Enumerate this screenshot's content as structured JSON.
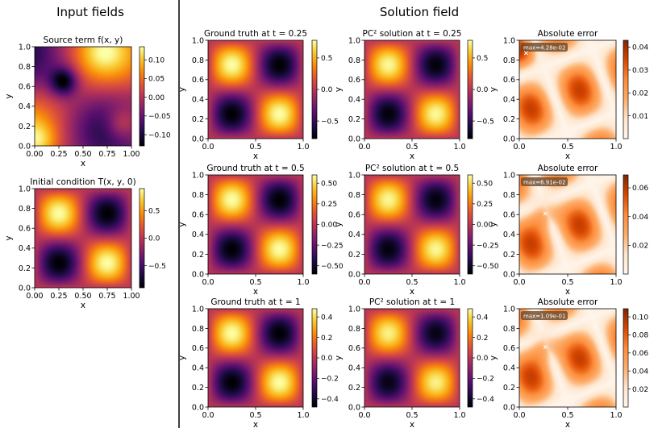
{
  "figure": {
    "left_title": "Input fields",
    "right_title": "Solution field"
  },
  "chart_data": [
    {
      "type": "heatmap",
      "id": "source",
      "title": "Source term f(x, y)",
      "xlabel": "x",
      "ylabel": "y",
      "xlim": [
        0,
        1
      ],
      "ylim": [
        0,
        1
      ],
      "xticks": [
        "0.00",
        "0.25",
        "0.50",
        "0.75",
        "1.00"
      ],
      "yticks": [
        "0.0",
        "0.2",
        "0.4",
        "0.6",
        "0.8",
        "1.0"
      ],
      "colormap": "inferno",
      "vmin": -0.13,
      "vmax": 0.135,
      "colorbar_ticks": [
        0.1,
        0.05,
        0.0,
        -0.05,
        -0.1
      ],
      "colorbar_labels": [
        "0.10",
        "0.05",
        "0.00",
        "−0.05",
        "−0.10"
      ],
      "field": "source"
    },
    {
      "type": "heatmap",
      "id": "initial",
      "title": "Initial condition T(x, y, 0)",
      "xlabel": "x",
      "ylabel": "y",
      "xlim": [
        0,
        1
      ],
      "ylim": [
        0,
        1
      ],
      "xticks": [
        "0.00",
        "0.25",
        "0.50",
        "0.75",
        "1.00"
      ],
      "yticks": [
        "0.0",
        "0.2",
        "0.4",
        "0.6",
        "0.8",
        "1.0"
      ],
      "colormap": "inferno",
      "vmin": -0.9,
      "vmax": 0.9,
      "colorbar_ticks": [
        0.5,
        0.0,
        -0.5
      ],
      "colorbar_labels": [
        "0.5",
        "0.0",
        "−0.5"
      ],
      "field": "wave",
      "amplitude": 0.9
    },
    {
      "type": "heatmap",
      "id": "gt1",
      "title": "Ground truth at t = 0.25",
      "xlabel": "x",
      "ylabel": "y",
      "xticks": [
        "0.0",
        "0.5",
        "1.0"
      ],
      "yticks": [
        "0.0",
        "0.2",
        "0.4",
        "0.6",
        "0.8",
        "1.0"
      ],
      "colormap": "inferno",
      "vmin": -0.78,
      "vmax": 0.78,
      "colorbar_ticks": [
        0.5,
        0.0,
        -0.5
      ],
      "colorbar_labels": [
        "0.5",
        "0.0",
        "−0.5"
      ],
      "field": "wave",
      "amplitude": 0.78
    },
    {
      "type": "heatmap",
      "id": "pc1",
      "title": "PC² solution at t = 0.25",
      "xlabel": "x",
      "ylabel": "y",
      "xticks": [
        "0.0",
        "0.5",
        "1.0"
      ],
      "yticks": [
        "0.0",
        "0.2",
        "0.4",
        "0.6",
        "0.8",
        "1.0"
      ],
      "colormap": "inferno",
      "vmin": -0.78,
      "vmax": 0.78,
      "colorbar_ticks": [
        0.5,
        0.0,
        -0.5
      ],
      "colorbar_labels": [
        "0.5",
        "0.0",
        "−0.5"
      ],
      "field": "wave",
      "amplitude": 0.76
    },
    {
      "type": "heatmap",
      "id": "err1",
      "title": "Absolute error",
      "xlabel": "x",
      "ylabel": "y",
      "xticks": [
        "0.0",
        "0.5",
        "1.0"
      ],
      "yticks": [
        "0.0",
        "0.2",
        "0.4",
        "0.6",
        "0.8",
        "1.0"
      ],
      "colormap": "oranges",
      "vmin": 0.0,
      "vmax": 0.043,
      "colorbar_ticks": [
        0.04,
        0.03,
        0.02,
        0.01
      ],
      "colorbar_labels": [
        "0.04",
        "0.03",
        "0.02",
        "0.01"
      ],
      "field": "error",
      "max_label": "max=4.28e-02",
      "max_point": [
        0.07,
        0.87
      ]
    },
    {
      "type": "heatmap",
      "id": "gt2",
      "title": "Ground truth at t = 0.5",
      "xlabel": "x",
      "ylabel": "y",
      "xticks": [
        "0.0",
        "0.5",
        "1.0"
      ],
      "yticks": [
        "0.0",
        "0.2",
        "0.4",
        "0.6",
        "0.8",
        "1.0"
      ],
      "colormap": "inferno",
      "vmin": -0.6,
      "vmax": 0.6,
      "colorbar_ticks": [
        0.5,
        0.25,
        0.0,
        -0.25,
        -0.5
      ],
      "colorbar_labels": [
        "0.50",
        "0.25",
        "0.00",
        "−0.25",
        "−0.50"
      ],
      "field": "wave",
      "amplitude": 0.6
    },
    {
      "type": "heatmap",
      "id": "pc2",
      "title": "PC² solution at t = 0.5",
      "xlabel": "x",
      "ylabel": "y",
      "xticks": [
        "0.0",
        "0.5",
        "1.0"
      ],
      "yticks": [
        "0.0",
        "0.2",
        "0.4",
        "0.6",
        "0.8",
        "1.0"
      ],
      "colormap": "inferno",
      "vmin": -0.6,
      "vmax": 0.6,
      "colorbar_ticks": [
        0.5,
        0.25,
        0.0,
        -0.25,
        -0.5
      ],
      "colorbar_labels": [
        "0.50",
        "0.25",
        "0.00",
        "−0.25",
        "−0.50"
      ],
      "field": "wave",
      "amplitude": 0.58
    },
    {
      "type": "heatmap",
      "id": "err2",
      "title": "Absolute error",
      "xlabel": "x",
      "ylabel": "y",
      "xticks": [
        "0.0",
        "0.5",
        "1.0"
      ],
      "yticks": [
        "0.0",
        "0.2",
        "0.4",
        "0.6",
        "0.8",
        "1.0"
      ],
      "colormap": "oranges",
      "vmin": 0.0,
      "vmax": 0.069,
      "colorbar_ticks": [
        0.06,
        0.04,
        0.02
      ],
      "colorbar_labels": [
        "0.06",
        "0.04",
        "0.02"
      ],
      "field": "error",
      "max_label": "max=6.91e-02",
      "max_point": [
        0.27,
        0.61
      ]
    },
    {
      "type": "heatmap",
      "id": "gt3",
      "title": "Ground truth at t = 1",
      "xlabel": "x",
      "ylabel": "y",
      "xticks": [
        "0.0",
        "0.5",
        "1.0"
      ],
      "yticks": [
        "0.0",
        "0.2",
        "0.4",
        "0.6",
        "0.8",
        "1.0"
      ],
      "colormap": "inferno",
      "vmin": -0.48,
      "vmax": 0.48,
      "colorbar_ticks": [
        0.4,
        0.2,
        0.0,
        -0.2,
        -0.4
      ],
      "colorbar_labels": [
        "0.4",
        "0.2",
        "0.0",
        "−0.2",
        "−0.4"
      ],
      "field": "wave",
      "amplitude": 0.48
    },
    {
      "type": "heatmap",
      "id": "pc3",
      "title": "PC² solution at t = 1",
      "xlabel": "x",
      "ylabel": "y",
      "xticks": [
        "0.0",
        "0.5",
        "1.0"
      ],
      "yticks": [
        "0.0",
        "0.2",
        "0.4",
        "0.6",
        "0.8",
        "1.0"
      ],
      "colormap": "inferno",
      "vmin": -0.48,
      "vmax": 0.48,
      "colorbar_ticks": [
        0.4,
        0.2,
        0.0,
        -0.2,
        -0.4
      ],
      "colorbar_labels": [
        "0.4",
        "0.2",
        "0.0",
        "−0.2",
        "−0.4"
      ],
      "field": "wave",
      "amplitude": 0.45
    },
    {
      "type": "heatmap",
      "id": "err3",
      "title": "Absolute error",
      "xlabel": "x",
      "ylabel": "y",
      "xticks": [
        "0.0",
        "0.5",
        "1.0"
      ],
      "yticks": [
        "0.0",
        "0.2",
        "0.4",
        "0.6",
        "0.8",
        "1.0"
      ],
      "colormap": "oranges",
      "vmin": 0.0,
      "vmax": 0.109,
      "colorbar_ticks": [
        0.1,
        0.08,
        0.06,
        0.04,
        0.02
      ],
      "colorbar_labels": [
        "0.10",
        "0.08",
        "0.06",
        "0.04",
        "0.02"
      ],
      "field": "error",
      "max_label": "max=1.09e-01",
      "max_point": [
        0.27,
        0.61
      ]
    }
  ]
}
